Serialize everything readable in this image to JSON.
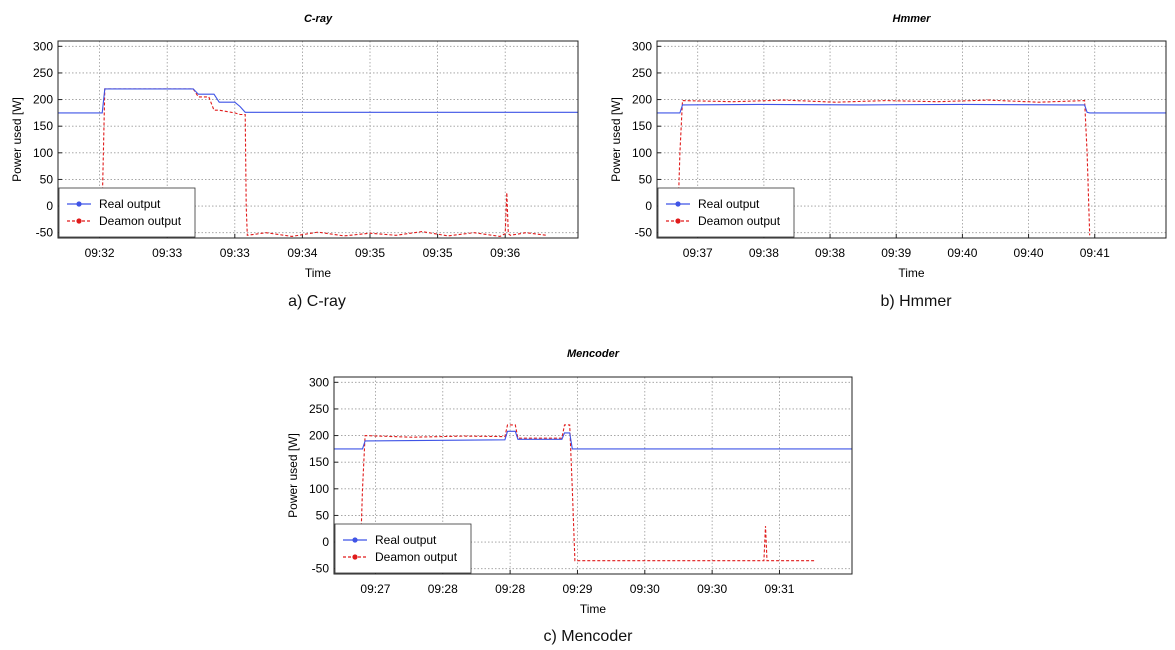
{
  "colors": {
    "real": "#3f54e6",
    "daemon": "#e01b1b",
    "grid": "#9a9a9a"
  },
  "chart_data": [
    {
      "type": "line",
      "title": "C-ray",
      "caption": "a) C-ray",
      "xlabel": "Time",
      "ylabel": "Power used [W]",
      "ylim": [
        -60,
        310
      ],
      "xlim": [
        0,
        100
      ],
      "yticks": [
        -50,
        0,
        50,
        100,
        150,
        200,
        250,
        300
      ],
      "xticks": [
        8,
        21,
        34,
        47,
        60,
        73,
        86
      ],
      "xtick_labels": [
        "09:32",
        "09:33",
        "09:33",
        "09:34",
        "09:35",
        "09:35",
        "09:36"
      ],
      "grid": true,
      "legend": "bottom-left",
      "series": [
        {
          "name": "Real output",
          "color": "#3f54e6",
          "style": "solid",
          "x": [
            0,
            8.5,
            9,
            26,
            27,
            30,
            31,
            34,
            35,
            36,
            100
          ],
          "y": [
            175,
            175,
            220,
            220,
            210,
            210,
            195,
            195,
            187,
            176,
            176
          ]
        },
        {
          "name": "Deamon output",
          "color": "#e01b1b",
          "style": "dashed",
          "x": [
            8,
            8.5,
            9,
            26,
            27,
            29,
            30,
            31,
            34,
            35,
            36,
            36.2,
            36.4,
            40,
            45,
            50,
            55,
            60,
            65,
            70,
            75,
            80,
            85,
            86,
            86.3,
            86.6,
            87,
            90,
            94
          ],
          "y": [
            -55,
            0,
            220,
            220,
            205,
            205,
            180,
            180,
            175,
            172,
            172,
            0,
            -55,
            -50,
            -57,
            -49,
            -56,
            -51,
            -55,
            -48,
            -56,
            -50,
            -57,
            -52,
            25,
            -52,
            -55,
            -50,
            -55
          ]
        }
      ]
    },
    {
      "type": "line",
      "title": "Hmmer",
      "caption": "b) Hmmer",
      "xlabel": "Time",
      "ylabel": "Power used [W]",
      "ylim": [
        -60,
        310
      ],
      "xlim": [
        0,
        100
      ],
      "yticks": [
        -50,
        0,
        50,
        100,
        150,
        200,
        250,
        300
      ],
      "xticks": [
        8,
        21,
        34,
        47,
        60,
        73,
        86
      ],
      "xtick_labels": [
        "09:37",
        "09:38",
        "09:38",
        "09:39",
        "09:40",
        "09:40",
        "09:41"
      ],
      "grid": true,
      "legend": "bottom-left",
      "series": [
        {
          "name": "Real output",
          "color": "#3f54e6",
          "style": "solid",
          "x": [
            0,
            4.5,
            5,
            20,
            40,
            60,
            80,
            84,
            84.5,
            85,
            100
          ],
          "y": [
            175,
            175,
            190,
            191,
            190,
            191,
            190,
            190,
            176,
            175,
            175
          ]
        },
        {
          "name": "Deamon output",
          "color": "#e01b1b",
          "style": "dashed",
          "x": [
            4,
            4.5,
            5,
            15,
            25,
            35,
            45,
            55,
            65,
            75,
            84,
            84.5,
            85
          ],
          "y": [
            -55,
            100,
            198,
            196,
            199,
            195,
            198,
            196,
            199,
            195,
            198,
            100,
            -55
          ]
        }
      ]
    },
    {
      "type": "line",
      "title": "Mencoder",
      "caption": "c) Mencoder",
      "xlabel": "Time",
      "ylabel": "Power used [W]",
      "ylim": [
        -60,
        310
      ],
      "xlim": [
        0,
        100
      ],
      "yticks": [
        -50,
        0,
        50,
        100,
        150,
        200,
        250,
        300
      ],
      "xticks": [
        8,
        21,
        34,
        47,
        60,
        73,
        86
      ],
      "xtick_labels": [
        "09:27",
        "09:28",
        "09:28",
        "09:29",
        "09:30",
        "09:30",
        "09:31"
      ],
      "grid": true,
      "legend": "bottom-left",
      "series": [
        {
          "name": "Real output",
          "color": "#3f54e6",
          "style": "solid",
          "x": [
            0,
            5.5,
            6,
            33,
            33.5,
            35,
            35.5,
            44,
            44.5,
            45.5,
            46,
            100
          ],
          "y": [
            175,
            175,
            190,
            192,
            208,
            208,
            193,
            193,
            205,
            205,
            175,
            175
          ]
        },
        {
          "name": "Deamon output",
          "color": "#e01b1b",
          "style": "dashed",
          "x": [
            5,
            5.5,
            6,
            15,
            25,
            33,
            33.5,
            35,
            35.5,
            44,
            44.5,
            45.5,
            46,
            46.5,
            60,
            75,
            83,
            83.3,
            83.6,
            84,
            93
          ],
          "y": [
            -55,
            100,
            200,
            197,
            199,
            198,
            220,
            220,
            195,
            195,
            220,
            220,
            100,
            -35,
            -35,
            -35,
            -35,
            30,
            -35,
            -35,
            -35
          ]
        }
      ]
    }
  ]
}
